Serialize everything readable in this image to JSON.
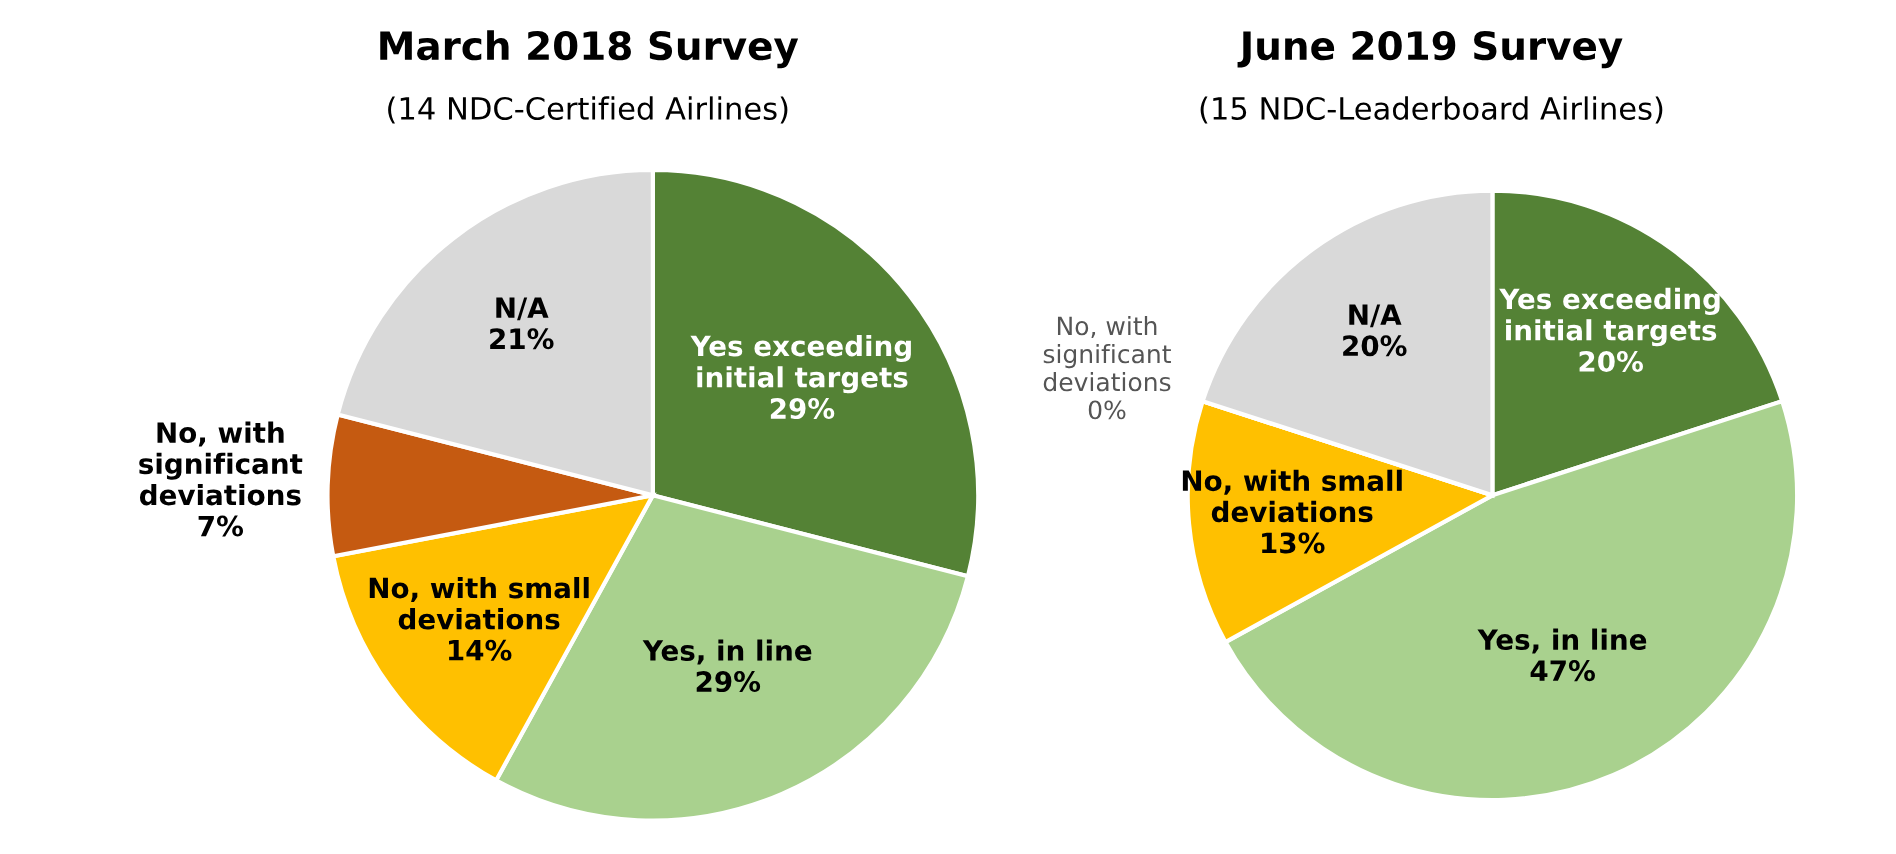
{
  "chart_data": [
    {
      "type": "pie",
      "title": "March 2018 Survey",
      "subtitle": "(14 NDC-Certified Airlines)",
      "categories": [
        "Yes exceeding\ninitial targets",
        "Yes, in line",
        "No, with small\ndeviations",
        "No, with\nsignificant\ndeviations",
        "N/A"
      ],
      "values": [
        29,
        29,
        14,
        7,
        21
      ],
      "value_labels": [
        "29%",
        "29%",
        "14%",
        "7%",
        "21%"
      ],
      "colors": [
        "#548235",
        "#a9d18e",
        "#ffc000",
        "#c55a11",
        "#d9d9d9"
      ]
    },
    {
      "type": "pie",
      "title": "June 2019 Survey",
      "subtitle": "(15 NDC-Leaderboard Airlines)",
      "categories": [
        "Yes exceeding\ninitial targets",
        "Yes, in line",
        "No, with small\ndeviations",
        "No, with\nsignificant\ndeviations",
        "N/A"
      ],
      "values": [
        20,
        47,
        13,
        0,
        20
      ],
      "value_labels": [
        "20%",
        "47%",
        "13%",
        "0%",
        "20%"
      ],
      "colors": [
        "#548235",
        "#a9d18e",
        "#ffc000",
        "#c55a11",
        "#d9d9d9"
      ]
    }
  ]
}
